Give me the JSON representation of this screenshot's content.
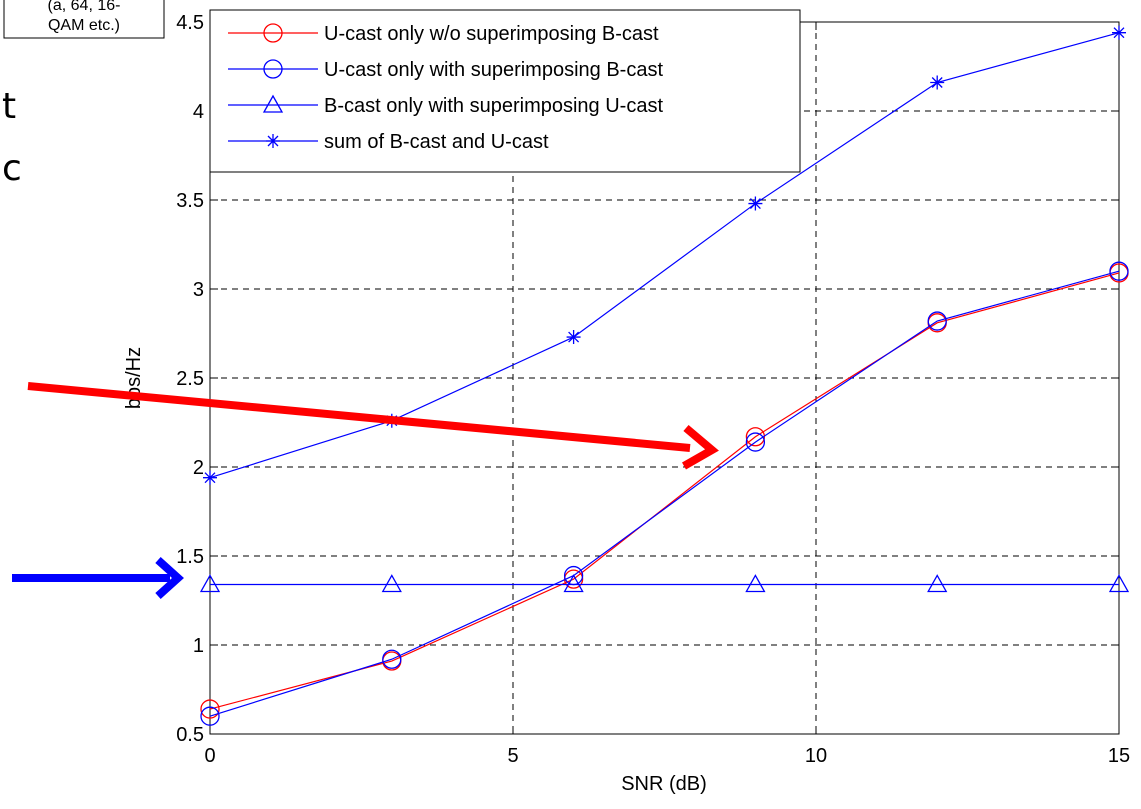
{
  "chart_data": {
    "type": "line",
    "title": "",
    "xlabel": "SNR (dB)",
    "ylabel": "bps/Hz",
    "xlim": [
      0,
      15
    ],
    "ylim": [
      0.5,
      4.5
    ],
    "xticks": [
      0,
      5,
      10,
      15
    ],
    "yticks": [
      0.5,
      1,
      1.5,
      2,
      2.5,
      3,
      3.5,
      4,
      4.5
    ],
    "grid": true,
    "legend_position": "top-left",
    "x": [
      0,
      3,
      6,
      9,
      12,
      15
    ],
    "series": [
      {
        "name": "U-cast only w/o superimposing B-cast",
        "color": "#ff0000",
        "marker": "circle",
        "values": [
          0.64,
          0.91,
          1.37,
          2.17,
          2.81,
          3.09
        ]
      },
      {
        "name": "U-cast only with superimposing B-cast",
        "color": "#0000ff",
        "marker": "circle",
        "values": [
          0.6,
          0.92,
          1.39,
          2.14,
          2.82,
          3.1
        ]
      },
      {
        "name": "B-cast only with superimposing U-cast",
        "color": "#0000ff",
        "marker": "triangle",
        "values": [
          1.34,
          1.34,
          1.34,
          1.34,
          1.34,
          1.34
        ]
      },
      {
        "name": "sum of B-cast and U-cast",
        "color": "#0000ff",
        "marker": "star",
        "values": [
          1.94,
          2.26,
          2.73,
          3.48,
          4.16,
          4.44
        ]
      }
    ]
  },
  "slide": {
    "note_lines": [
      "(a, 64, 16-",
      "QAM etc.)"
    ],
    "letters": [
      "t",
      "c"
    ],
    "arrow_colors": {
      "red": "#ff0000",
      "blue": "#0000ff"
    }
  }
}
